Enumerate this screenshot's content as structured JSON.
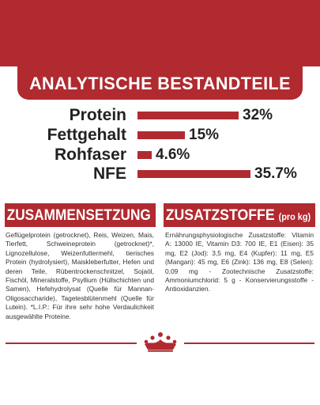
{
  "colors": {
    "brand_red": "#b02a30",
    "text": "#222222"
  },
  "analysis": {
    "title": "ANALYTISCHE BESTANDTEILE",
    "rows": [
      {
        "label": "Protein",
        "value": "32%",
        "fraction": 0.32
      },
      {
        "label": "Fettgehalt",
        "value": "15%",
        "fraction": 0.15
      },
      {
        "label": "Rohfaser",
        "value": "4.6%",
        "fraction": 0.046
      },
      {
        "label": "NFE",
        "value": "35.7%",
        "fraction": 0.357
      }
    ]
  },
  "composition": {
    "title": "ZUSAMMENSETZUNG",
    "text": "Geflügelprotein (getrocknet), Reis, Weizen, Mais, Tierfett, Schweineprotein (getrocknet)*, Lignozellulose, Weizenfuttermehl, tierisches Protein (hydrolysiert), Maiskleberfutter, Hefen und deren Teile, Rübentrockenschnitzel, Sojaöl, Fischöl, Mineralstoffe, Psyllium (Hüllschichten und Samen), Hefehydrolysat (Quelle für Mannan-Oligosaccharide), Tagetesblütenmehl (Quelle für Lutein). *L.I.P.: Für ihre sehr hohe Verdaulichkeit ausgewählte Proteine."
  },
  "additives": {
    "title": "ZUSATZSTOFFE",
    "subtitle": "(pro kg)",
    "text": "Ernährungsphysiologische Zusatzstoffe: Vitamin A: 13000 IE, Vitamin D3: 700 IE, E1 (Eisen): 35 mg, E2 (Jod): 3,5 mg, E4 (Kupfer): 11 mg, E5 (Mangan): 45 mg, E6 (Zink): 136 mg, E8 (Selen): 0,09 mg - Zootechnische Zusatzstoffe: Ammoniumchlorid: 5 g - Konservierungsstoffe - Antioxidanzien."
  },
  "logo": {
    "icon": "royal-canin-crown-icon"
  }
}
